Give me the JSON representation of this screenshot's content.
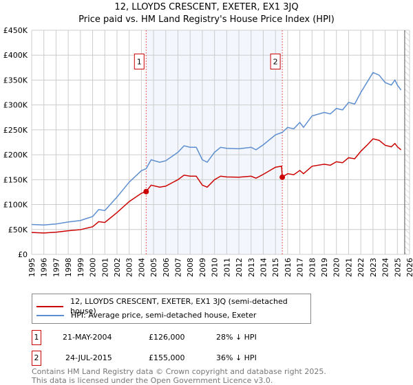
{
  "title": "12, LLOYDS CRESCENT, EXETER, EX1 3JQ",
  "subtitle": "Price paid vs. HM Land Registry's House Price Index (HPI)",
  "chart_data": {
    "type": "line",
    "xlim": [
      1995,
      2026
    ],
    "ylim": [
      0,
      450000
    ],
    "yticks": [
      0,
      50000,
      100000,
      150000,
      200000,
      250000,
      300000,
      350000,
      400000,
      450000
    ],
    "ytick_labels": [
      "£0",
      "£50K",
      "£100K",
      "£150K",
      "£200K",
      "£250K",
      "£300K",
      "£350K",
      "£400K",
      "£450K"
    ],
    "xticks": [
      "1995",
      "1996",
      "1997",
      "1998",
      "1999",
      "2000",
      "2001",
      "2002",
      "2003",
      "2004",
      "2005",
      "2006",
      "2007",
      "2008",
      "2009",
      "2010",
      "2011",
      "2012",
      "2013",
      "2014",
      "2015",
      "2016",
      "2017",
      "2018",
      "2019",
      "2020",
      "2021",
      "2022",
      "2023",
      "2024",
      "2025",
      "2026"
    ],
    "grid": true,
    "shaded_range": [
      2004.39,
      2015.56
    ],
    "forecast_hatch_from": 2025.6,
    "series": [
      {
        "name": "12, LLOYDS CRESCENT, EXETER, EX1 3JQ (semi-detached house)",
        "color": "#cc0000",
        "points": [
          [
            1995,
            44000
          ],
          [
            1996,
            43000
          ],
          [
            1997,
            44500
          ],
          [
            1998,
            47500
          ],
          [
            1999,
            49600
          ],
          [
            2000,
            55500
          ],
          [
            2000.5,
            65700
          ],
          [
            2001,
            64000
          ],
          [
            2002,
            84000
          ],
          [
            2003,
            106000
          ],
          [
            2004,
            122600
          ],
          [
            2004.39,
            126000
          ],
          [
            2004.8,
            139000
          ],
          [
            2005.5,
            135000
          ],
          [
            2006,
            137000
          ],
          [
            2007,
            150000
          ],
          [
            2007.5,
            159000
          ],
          [
            2008,
            157000
          ],
          [
            2008.5,
            157000
          ],
          [
            2009,
            139000
          ],
          [
            2009.4,
            135000
          ],
          [
            2010,
            150000
          ],
          [
            2010.5,
            157000
          ],
          [
            2011,
            155500
          ],
          [
            2012,
            155000
          ],
          [
            2013,
            157000
          ],
          [
            2013.4,
            153000
          ],
          [
            2014,
            160600
          ],
          [
            2015,
            175000
          ],
          [
            2015.5,
            177000
          ],
          [
            2015.56,
            155000
          ],
          [
            2016,
            162000
          ],
          [
            2016.5,
            160000
          ],
          [
            2017,
            168500
          ],
          [
            2017.3,
            162000
          ],
          [
            2018,
            177000
          ],
          [
            2019,
            181000
          ],
          [
            2019.5,
            179000
          ],
          [
            2020,
            186000
          ],
          [
            2020.5,
            184000
          ],
          [
            2021,
            194000
          ],
          [
            2021.5,
            192000
          ],
          [
            2022,
            207000
          ],
          [
            2022.5,
            219000
          ],
          [
            2023,
            232000
          ],
          [
            2023.5,
            229000
          ],
          [
            2024,
            219000
          ],
          [
            2024.5,
            216000
          ],
          [
            2024.8,
            222600
          ],
          [
            2025,
            216000
          ],
          [
            2025.3,
            210000
          ]
        ]
      },
      {
        "name": "HPI: Average price, semi-detached house, Exeter",
        "color": "#5b8dd0",
        "points": [
          [
            1995,
            60000
          ],
          [
            1996,
            59000
          ],
          [
            1997,
            61000
          ],
          [
            1998,
            65000
          ],
          [
            1999,
            68000
          ],
          [
            2000,
            76000
          ],
          [
            2000.5,
            90000
          ],
          [
            2001,
            88000
          ],
          [
            2002,
            115000
          ],
          [
            2003,
            145000
          ],
          [
            2004,
            168000
          ],
          [
            2004.39,
            172000
          ],
          [
            2004.8,
            190000
          ],
          [
            2005.5,
            185000
          ],
          [
            2006,
            188000
          ],
          [
            2007,
            205000
          ],
          [
            2007.5,
            218000
          ],
          [
            2008,
            215000
          ],
          [
            2008.5,
            215000
          ],
          [
            2009,
            190000
          ],
          [
            2009.4,
            185000
          ],
          [
            2010,
            205000
          ],
          [
            2010.5,
            215000
          ],
          [
            2011,
            213000
          ],
          [
            2012,
            212000
          ],
          [
            2013,
            215000
          ],
          [
            2013.4,
            210000
          ],
          [
            2014,
            220000
          ],
          [
            2015,
            240000
          ],
          [
            2015.56,
            245000
          ],
          [
            2016,
            255000
          ],
          [
            2016.5,
            252000
          ],
          [
            2017,
            265000
          ],
          [
            2017.3,
            255000
          ],
          [
            2018,
            278000
          ],
          [
            2019,
            285000
          ],
          [
            2019.5,
            282000
          ],
          [
            2020,
            293000
          ],
          [
            2020.5,
            290000
          ],
          [
            2021,
            305000
          ],
          [
            2021.5,
            302000
          ],
          [
            2022,
            325000
          ],
          [
            2022.5,
            345000
          ],
          [
            2023,
            365000
          ],
          [
            2023.5,
            360000
          ],
          [
            2024,
            345000
          ],
          [
            2024.5,
            340000
          ],
          [
            2024.8,
            350000
          ],
          [
            2025,
            340000
          ],
          [
            2025.3,
            330000
          ]
        ]
      }
    ],
    "sales": [
      {
        "label": "1",
        "x": 2004.39,
        "y": 126000
      },
      {
        "label": "2",
        "x": 2015.56,
        "y": 155000
      }
    ],
    "annotation_y": 390000
  },
  "legend": {
    "items": [
      "12, LLOYDS CRESCENT, EXETER, EX1 3JQ (semi-detached house)",
      "HPI: Average price, semi-detached house, Exeter"
    ]
  },
  "table": [
    {
      "num": "1",
      "date": "21-MAY-2004",
      "price": "£126,000",
      "delta": "28% ↓ HPI"
    },
    {
      "num": "2",
      "date": "24-JUL-2015",
      "price": "£155,000",
      "delta": "36% ↓ HPI"
    }
  ],
  "footer": {
    "line1": "Contains HM Land Registry data © Crown copyright and database right 2025.",
    "line2": "This data is licensed under the Open Government Licence v3.0."
  }
}
